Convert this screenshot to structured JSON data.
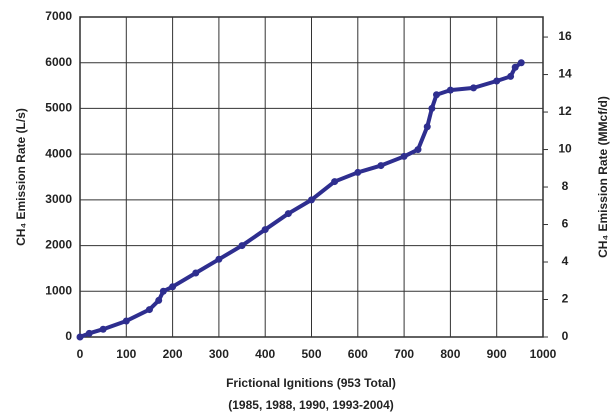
{
  "chart_data": {
    "type": "scatter",
    "xlabel": "Frictional Ignitions (953 Total)",
    "xlabel2": "(1985, 1988, 1990, 1993-2004)",
    "ylabel": "CH₄ Emission Rate (L/s)",
    "y2label": "CH₄ Emission Rate (MMcf/d)",
    "x": [
      0,
      20,
      50,
      100,
      150,
      170,
      180,
      200,
      250,
      300,
      350,
      400,
      450,
      500,
      550,
      600,
      650,
      700,
      730,
      750,
      760,
      770,
      800,
      850,
      900,
      930,
      940,
      953
    ],
    "series": [
      {
        "color": "#2e2e8f",
        "values": [
          0,
          80,
          170,
          350,
          600,
          800,
          1000,
          1100,
          1400,
          1700,
          2000,
          2350,
          2700,
          3000,
          3400,
          3600,
          3750,
          3950,
          4100,
          4600,
          5000,
          5300,
          5400,
          5450,
          5600,
          5700,
          5900,
          6000
        ]
      }
    ],
    "xlim": [
      0,
      1000
    ],
    "xticks": [
      0,
      100,
      200,
      300,
      400,
      500,
      600,
      700,
      800,
      900,
      1000
    ],
    "ylim": [
      0,
      7000
    ],
    "yticks": [
      0,
      1000,
      2000,
      3000,
      4000,
      5000,
      6000,
      7000
    ],
    "y2lim": [
      0,
      17.07
    ],
    "y2ticks": [
      0,
      2,
      4,
      6,
      8,
      10,
      12,
      14,
      16
    ],
    "grid": true
  }
}
